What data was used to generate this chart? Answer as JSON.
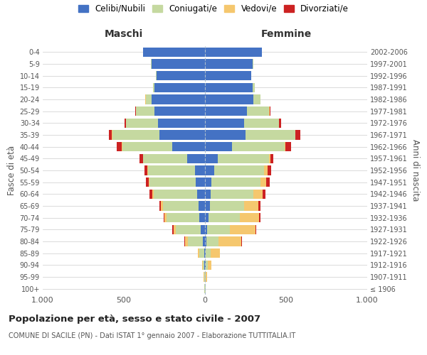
{
  "age_groups": [
    "100+",
    "95-99",
    "90-94",
    "85-89",
    "80-84",
    "75-79",
    "70-74",
    "65-69",
    "60-64",
    "55-59",
    "50-54",
    "45-49",
    "40-44",
    "35-39",
    "30-34",
    "25-29",
    "20-24",
    "15-19",
    "10-14",
    "5-9",
    "0-4"
  ],
  "birth_years": [
    "≤ 1906",
    "1907-1911",
    "1912-1916",
    "1917-1921",
    "1922-1926",
    "1927-1931",
    "1932-1936",
    "1937-1941",
    "1942-1946",
    "1947-1951",
    "1952-1956",
    "1957-1961",
    "1962-1966",
    "1967-1971",
    "1972-1976",
    "1977-1981",
    "1982-1986",
    "1987-1991",
    "1992-1996",
    "1997-2001",
    "2002-2006"
  ],
  "males": {
    "celibi": [
      2,
      2,
      3,
      5,
      15,
      25,
      35,
      40,
      50,
      55,
      60,
      110,
      200,
      280,
      290,
      310,
      330,
      310,
      300,
      330,
      380
    ],
    "coniugati": [
      2,
      3,
      10,
      30,
      90,
      155,
      200,
      220,
      265,
      285,
      290,
      270,
      310,
      290,
      195,
      115,
      35,
      10,
      2,
      2,
      2
    ],
    "vedovi": [
      0,
      2,
      5,
      10,
      20,
      15,
      15,
      10,
      10,
      5,
      5,
      3,
      3,
      3,
      2,
      2,
      2,
      0,
      0,
      0,
      0
    ],
    "divorziati": [
      0,
      0,
      0,
      0,
      2,
      5,
      5,
      10,
      15,
      20,
      18,
      20,
      30,
      20,
      10,
      5,
      2,
      0,
      0,
      0,
      0
    ]
  },
  "females": {
    "nubili": [
      2,
      2,
      3,
      5,
      10,
      15,
      20,
      30,
      35,
      40,
      55,
      80,
      165,
      250,
      240,
      260,
      300,
      295,
      285,
      295,
      350
    ],
    "coniugate": [
      2,
      4,
      15,
      30,
      75,
      140,
      195,
      210,
      265,
      300,
      310,
      315,
      325,
      305,
      215,
      135,
      40,
      10,
      2,
      2,
      2
    ],
    "vedove": [
      2,
      5,
      20,
      55,
      140,
      155,
      120,
      90,
      55,
      35,
      20,
      10,
      5,
      3,
      3,
      3,
      2,
      0,
      0,
      0,
      0
    ],
    "divorziate": [
      0,
      0,
      0,
      0,
      2,
      5,
      8,
      10,
      18,
      25,
      22,
      18,
      35,
      30,
      12,
      5,
      2,
      0,
      0,
      0,
      0
    ]
  },
  "colors": {
    "celibi": "#4472c4",
    "coniugati": "#c5d9a0",
    "vedovi": "#f5c76e",
    "divorziati": "#cc2222"
  },
  "legend_labels": [
    "Celibi/Nubili",
    "Coniugati/e",
    "Vedovi/e",
    "Divorziati/e"
  ],
  "title": "Popolazione per età, sesso e stato civile - 2007",
  "subtitle": "COMUNE DI SACILE (PN) - Dati ISTAT 1° gennaio 2007 - Elaborazione TUTTITALIA.IT",
  "xlabel_left": "Maschi",
  "xlabel_right": "Femmine",
  "ylabel_left": "Fasce di età",
  "ylabel_right": "Anni di nascita",
  "xlim": 1000,
  "background_color": "#ffffff",
  "bar_height": 0.8
}
